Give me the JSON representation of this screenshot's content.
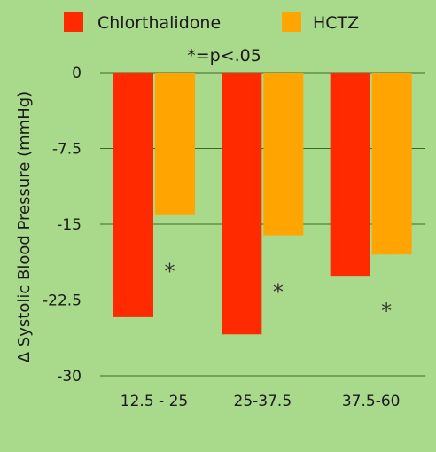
{
  "chart_data": {
    "type": "bar",
    "categories": [
      "12.5 - 25",
      "25-37.5",
      "37.5-60"
    ],
    "series": [
      {
        "name": "Chlorthalidone",
        "values": [
          -24.2,
          -25.9,
          -20.1
        ],
        "color": "#ff2a00"
      },
      {
        "name": "HCTZ",
        "values": [
          -14.1,
          -16.1,
          -18.0
        ],
        "color": "#ffa400"
      }
    ],
    "ylabel": "Δ Systolic Blood Pressure (mmHg)",
    "yticks": [
      0,
      -7.5,
      -15,
      -22.5,
      -30
    ],
    "ytick_labels": [
      "0",
      "-7.5",
      "-15",
      "-22.5",
      "-30"
    ],
    "ylim": [
      -30,
      0
    ],
    "grid": true,
    "legend": "top",
    "annotation": "*=p<.05",
    "significance_markers": [
      "*",
      "*",
      "*"
    ],
    "background": "#a9d98a",
    "grid_color": "#3a6b2a"
  }
}
